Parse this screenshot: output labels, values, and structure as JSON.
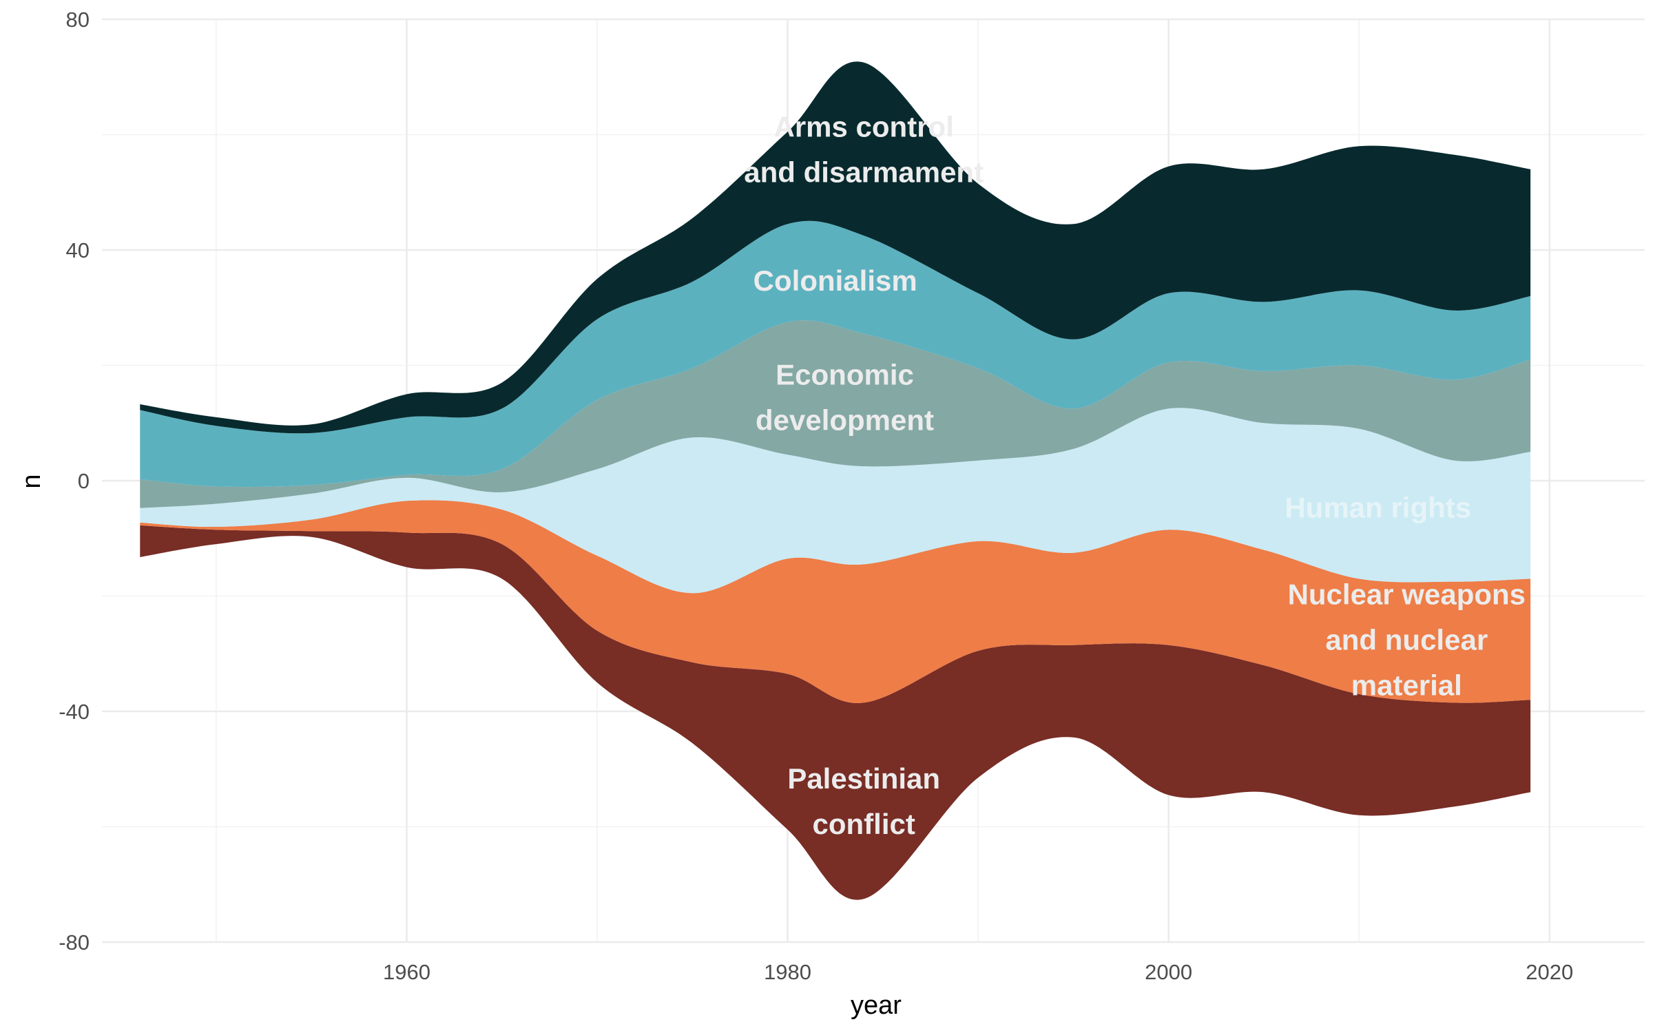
{
  "chart_data": {
    "type": "area",
    "subtype": "streamgraph",
    "xlabel": "year",
    "ylabel": "n",
    "xlim": [
      1944,
      2025
    ],
    "ylim": [
      -80,
      80
    ],
    "x_ticks": [
      1960,
      1980,
      2000,
      2020
    ],
    "y_ticks": [
      -80,
      -40,
      0,
      40,
      80
    ],
    "grid": true,
    "legend": "none (direct labels)",
    "x": [
      1946,
      1950,
      1955,
      1960,
      1965,
      1970,
      1975,
      1980,
      1984,
      1990,
      1995,
      2000,
      2005,
      2010,
      2015,
      2019
    ],
    "series_stack_order": "bottom to top",
    "series": [
      {
        "name": "Palestinian conflict",
        "label_lines": [
          "Palestinian",
          "conflict"
        ],
        "color": "#782d25",
        "label_color": "#ececec",
        "values": [
          5.5,
          2.5,
          1,
          6,
          6,
          9,
          14,
          27,
          34,
          22,
          16,
          26,
          22,
          21,
          18,
          16
        ]
      },
      {
        "name": "Nuclear weapons and nuclear material",
        "label_lines": [
          "Nuclear weapons",
          "and nuclear",
          "material"
        ],
        "color": "#ee7d47",
        "label_color": "#ececec",
        "values": [
          0.5,
          0.5,
          2,
          5.5,
          6,
          13,
          12,
          20,
          24,
          19,
          16,
          20,
          20,
          20,
          21,
          21
        ]
      },
      {
        "name": "Human rights",
        "label_lines": [
          "Human rights"
        ],
        "color": "#cbeaf4",
        "label_color": "#e6f4f8",
        "values": [
          2.5,
          4,
          4.5,
          4,
          3,
          15,
          27,
          18,
          17,
          14,
          18,
          21,
          22,
          26,
          21,
          22
        ]
      },
      {
        "name": "Economic development",
        "label_lines": [
          "Economic",
          "development"
        ],
        "color": "#84a8a4",
        "label_color": "#ececec",
        "values": [
          5,
          3,
          1.5,
          0.5,
          4,
          12,
          12,
          23,
          23,
          16,
          7,
          8,
          9,
          11,
          14,
          16
        ]
      },
      {
        "name": "Colonialism",
        "label_lines": [
          "Colonialism"
        ],
        "color": "#5cb1bf",
        "label_color": "#ececec",
        "values": [
          12,
          10.5,
          9,
          10,
          10.5,
          14,
          15,
          17,
          17,
          13,
          12,
          12,
          12,
          13,
          12,
          11
        ]
      },
      {
        "name": "Arms control and disarmament",
        "label_lines": [
          "Arms control",
          "and disarmament"
        ],
        "color": "#082a2e",
        "label_color": "#ececec",
        "values": [
          1,
          1.5,
          1.5,
          4,
          4.5,
          7,
          11,
          16,
          30,
          19,
          20,
          22,
          23,
          25,
          27,
          22
        ]
      }
    ]
  }
}
